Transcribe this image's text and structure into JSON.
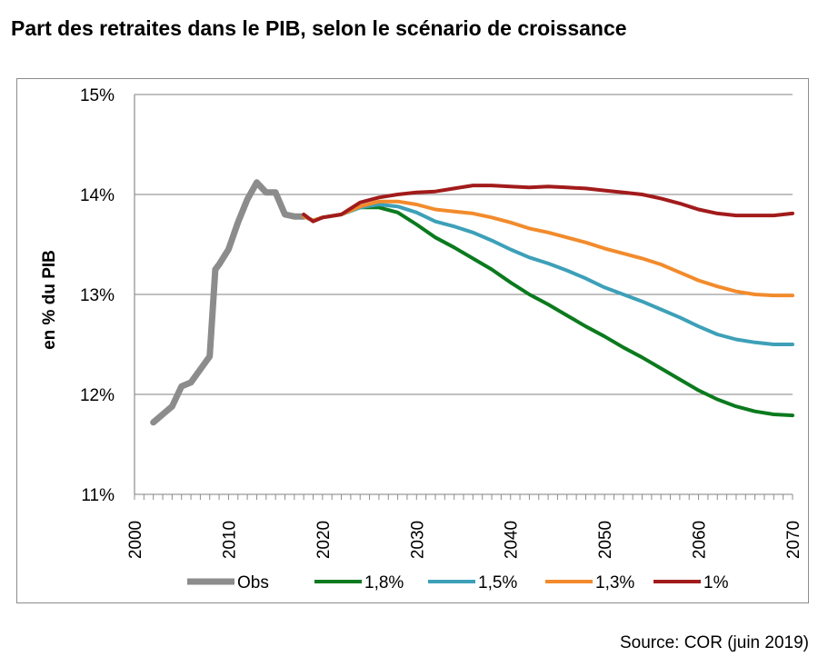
{
  "title": "Part des retraites dans le PIB, selon le scénario de croissance",
  "source": "Source: COR (juin 2019)",
  "chart_data": {
    "type": "line",
    "ylabel": "en % du PIB",
    "xlabel": "",
    "xlim": [
      2000,
      2070
    ],
    "ylim": [
      11,
      15
    ],
    "grid": "horizontal",
    "legend_position": "bottom",
    "x_ticks": [
      2000,
      2010,
      2020,
      2030,
      2040,
      2050,
      2060,
      2070
    ],
    "x_tick_labels": [
      "2000",
      "2010",
      "2020",
      "2030",
      "2040",
      "2050",
      "2060",
      "2070"
    ],
    "y_ticks": [
      11,
      12,
      13,
      14,
      15
    ],
    "y_tick_labels": [
      "11%",
      "12%",
      "13%",
      "14%",
      "15%"
    ],
    "series": [
      {
        "name": "Obs",
        "color": "#8c8c8c",
        "width": 7,
        "x": [
          2002,
          2003,
          2004,
          2005,
          2006,
          2007,
          2008,
          2008.6,
          2009,
          2010,
          2011,
          2012,
          2013,
          2014,
          2015,
          2016,
          2017,
          2018
        ],
        "y": [
          11.72,
          11.8,
          11.88,
          12.08,
          12.12,
          12.25,
          12.38,
          13.25,
          13.3,
          13.45,
          13.72,
          13.95,
          14.12,
          14.02,
          14.02,
          13.8,
          13.78,
          13.78
        ]
      },
      {
        "name": "1,8%",
        "color": "#0b7a1e",
        "width": 4,
        "x": [
          2018,
          2019,
          2020,
          2022,
          2024,
          2026,
          2028,
          2030,
          2032,
          2034,
          2036,
          2038,
          2040,
          2042,
          2044,
          2046,
          2048,
          2050,
          2052,
          2054,
          2056,
          2058,
          2060,
          2062,
          2064,
          2066,
          2068,
          2070
        ],
        "y": [
          13.78,
          13.74,
          13.77,
          13.8,
          13.87,
          13.87,
          13.82,
          13.7,
          13.57,
          13.47,
          13.36,
          13.25,
          13.12,
          13.0,
          12.9,
          12.79,
          12.68,
          12.58,
          12.47,
          12.37,
          12.26,
          12.15,
          12.04,
          11.95,
          11.88,
          11.83,
          11.8,
          11.79
        ]
      },
      {
        "name": "1,5%",
        "color": "#3da0b8",
        "width": 4,
        "x": [
          2018,
          2019,
          2020,
          2022,
          2024,
          2026,
          2028,
          2030,
          2032,
          2034,
          2036,
          2038,
          2040,
          2042,
          2044,
          2046,
          2048,
          2050,
          2052,
          2054,
          2056,
          2058,
          2060,
          2062,
          2064,
          2066,
          2068,
          2070
        ],
        "y": [
          13.78,
          13.74,
          13.77,
          13.8,
          13.87,
          13.9,
          13.88,
          13.82,
          13.73,
          13.68,
          13.62,
          13.54,
          13.45,
          13.37,
          13.31,
          13.24,
          13.16,
          13.07,
          13.0,
          12.93,
          12.85,
          12.77,
          12.68,
          12.6,
          12.55,
          12.52,
          12.5,
          12.5
        ]
      },
      {
        "name": "1,3%",
        "color": "#f28b2c",
        "width": 4,
        "x": [
          2018,
          2019,
          2020,
          2022,
          2024,
          2026,
          2028,
          2030,
          2032,
          2034,
          2036,
          2038,
          2040,
          2042,
          2044,
          2046,
          2048,
          2050,
          2052,
          2054,
          2056,
          2058,
          2060,
          2062,
          2064,
          2066,
          2068,
          2070
        ],
        "y": [
          13.78,
          13.74,
          13.77,
          13.8,
          13.88,
          13.93,
          13.93,
          13.9,
          13.85,
          13.83,
          13.81,
          13.77,
          13.72,
          13.66,
          13.62,
          13.57,
          13.52,
          13.46,
          13.41,
          13.36,
          13.3,
          13.22,
          13.14,
          13.08,
          13.03,
          13.0,
          12.99,
          12.99
        ]
      },
      {
        "name": "1%",
        "color": "#a21b1b",
        "width": 4,
        "x": [
          2018,
          2019,
          2020,
          2022,
          2024,
          2026,
          2028,
          2030,
          2032,
          2034,
          2036,
          2038,
          2040,
          2042,
          2044,
          2046,
          2048,
          2050,
          2052,
          2054,
          2056,
          2058,
          2060,
          2062,
          2064,
          2066,
          2068,
          2070
        ],
        "y": [
          13.8,
          13.73,
          13.77,
          13.8,
          13.92,
          13.97,
          14.0,
          14.02,
          14.03,
          14.06,
          14.09,
          14.09,
          14.08,
          14.07,
          14.08,
          14.07,
          14.06,
          14.04,
          14.02,
          14.0,
          13.96,
          13.91,
          13.85,
          13.81,
          13.79,
          13.79,
          13.79,
          13.81
        ]
      }
    ]
  }
}
